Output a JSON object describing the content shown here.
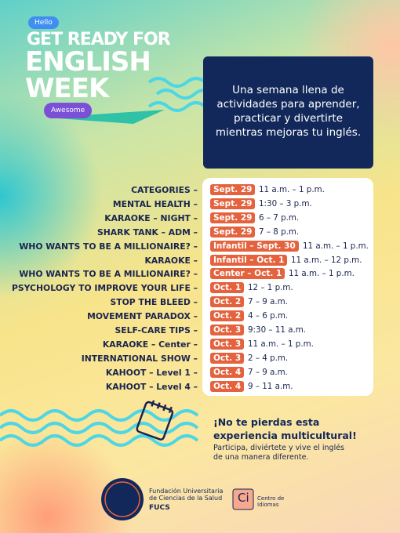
{
  "header": {
    "hello": "Hello",
    "title_lines": [
      "GET READY FOR",
      "ENGLISH",
      "WEEK"
    ],
    "awesome": "Awesome"
  },
  "intro": "Una semana llena de actividades para aprender, practicar y divertirte mientras mejoras tu inglés.",
  "schedule": [
    {
      "activity": "CATEGORIES –",
      "date": "Sept. 29",
      "time": "11 a.m. – 1 p.m."
    },
    {
      "activity": "MENTAL HEALTH –",
      "date": "Sept. 29",
      "time": "1:30 – 3 p.m."
    },
    {
      "activity": "KARAOKE – NIGHT –",
      "date": "Sept. 29",
      "time": "6 – 7 p.m."
    },
    {
      "activity": "SHARK TANK – ADM –",
      "date": "Sept. 29",
      "time": "7 – 8 p.m."
    },
    {
      "activity": "WHO WANTS TO BE A MILLIONAIRE? –",
      "date": "Infantil – Sept. 30",
      "time": "11 a.m. – 1 p.m."
    },
    {
      "activity": "KARAOKE –",
      "date": "Infantil – Oct. 1",
      "time": "11 a.m. – 12 p.m."
    },
    {
      "activity": "WHO WANTS TO BE A MILLIONAIRE? –",
      "date": "Center – Oct. 1",
      "time": "11 a.m. – 1 p.m."
    },
    {
      "activity": "PSYCHOLOGY TO IMPROVE YOUR LIFE –",
      "date": "Oct. 1",
      "time": "12 – 1 p.m."
    },
    {
      "activity": "STOP THE BLEED –",
      "date": "Oct. 2",
      "time": "7 – 9 a.m."
    },
    {
      "activity": "MOVEMENT PARADOX –",
      "date": "Oct. 2",
      "time": "4 – 6 p.m."
    },
    {
      "activity": "SELF-CARE TIPS –",
      "date": "Oct. 3",
      "time": "9:30 – 11 a.m."
    },
    {
      "activity": "KARAOKE – Center –",
      "date": "Oct. 3",
      "time": "11 a.m. – 1 p.m."
    },
    {
      "activity": "INTERNATIONAL SHOW –",
      "date": "Oct. 3",
      "time": "2 – 4 p.m."
    },
    {
      "activity": "KAHOOT – Level 1 –",
      "date": "Oct. 4",
      "time": "7 – 9 a.m."
    },
    {
      "activity": "KAHOOT – Level 4 –",
      "date": "Oct. 4",
      "time": "9 – 11 a.m."
    }
  ],
  "footer": {
    "headline": "¡No te pierdas esta experiencia multicultural!",
    "subtext": "Participa, diviértete y vive el inglés de una manera diferente.",
    "fucs_name": "Fundación Universitaria de Ciencias de la Salud",
    "fucs_acronym": "FUCS",
    "ci_mark": "Ci",
    "ci_name": "Centro de Idiomas"
  }
}
